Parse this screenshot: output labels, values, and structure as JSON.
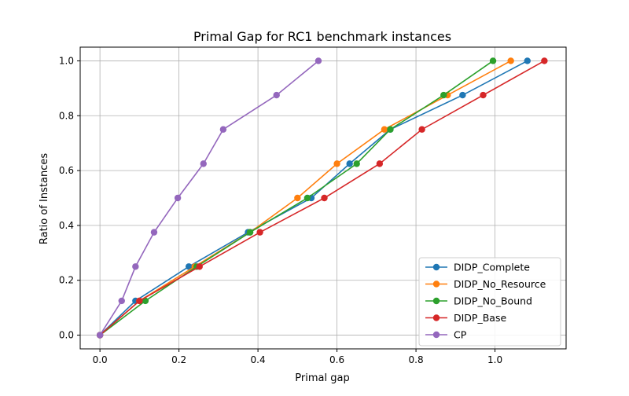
{
  "chart_data": {
    "type": "line",
    "title": "Primal Gap for RC1 benchmark instances",
    "xlabel": "Primal gap",
    "ylabel": "Ratio of Instances",
    "xlim": [
      -0.05,
      1.18
    ],
    "ylim": [
      -0.05,
      1.05
    ],
    "xticks": [
      0.0,
      0.2,
      0.4,
      0.6,
      0.8,
      1.0
    ],
    "yticks": [
      0.0,
      0.2,
      0.4,
      0.6,
      0.8,
      1.0
    ],
    "xtick_labels": [
      "0.0",
      "0.2",
      "0.4",
      "0.6",
      "0.8",
      "1.0"
    ],
    "ytick_labels": [
      "0.0",
      "0.2",
      "0.4",
      "0.6",
      "0.8",
      "1.0"
    ],
    "grid": true,
    "legend_position": "lower-right",
    "series": [
      {
        "name": "DIDP_Complete",
        "color": "#1f77b4",
        "x": [
          0.0,
          0.09,
          0.225,
          0.375,
          0.535,
          0.632,
          0.735,
          0.918,
          1.082
        ],
        "y": [
          0.0,
          0.125,
          0.25,
          0.375,
          0.5,
          0.625,
          0.75,
          0.875,
          1.0
        ]
      },
      {
        "name": "DIDP_No_Resource",
        "color": "#ff7f0e",
        "x": [
          0.0,
          0.1,
          0.24,
          0.38,
          0.5,
          0.6,
          0.72,
          0.88,
          1.04
        ],
        "y": [
          0.0,
          0.125,
          0.25,
          0.375,
          0.5,
          0.625,
          0.75,
          0.875,
          1.0
        ]
      },
      {
        "name": "DIDP_No_Bound",
        "color": "#2ca02c",
        "x": [
          0.0,
          0.115,
          0.245,
          0.38,
          0.525,
          0.65,
          0.735,
          0.87,
          0.995
        ],
        "y": [
          0.0,
          0.125,
          0.25,
          0.375,
          0.5,
          0.625,
          0.75,
          0.875,
          1.0
        ]
      },
      {
        "name": "DIDP_Base",
        "color": "#d62728",
        "x": [
          0.0,
          0.1,
          0.252,
          0.405,
          0.568,
          0.708,
          0.815,
          0.97,
          1.125
        ],
        "y": [
          0.0,
          0.125,
          0.25,
          0.375,
          0.5,
          0.625,
          0.75,
          0.875,
          1.0
        ]
      },
      {
        "name": "CP",
        "color": "#9467bd",
        "x": [
          0.0,
          0.055,
          0.09,
          0.137,
          0.197,
          0.262,
          0.312,
          0.447,
          0.553
        ],
        "y": [
          0.0,
          0.125,
          0.25,
          0.375,
          0.5,
          0.625,
          0.75,
          0.875,
          1.0
        ]
      }
    ]
  }
}
